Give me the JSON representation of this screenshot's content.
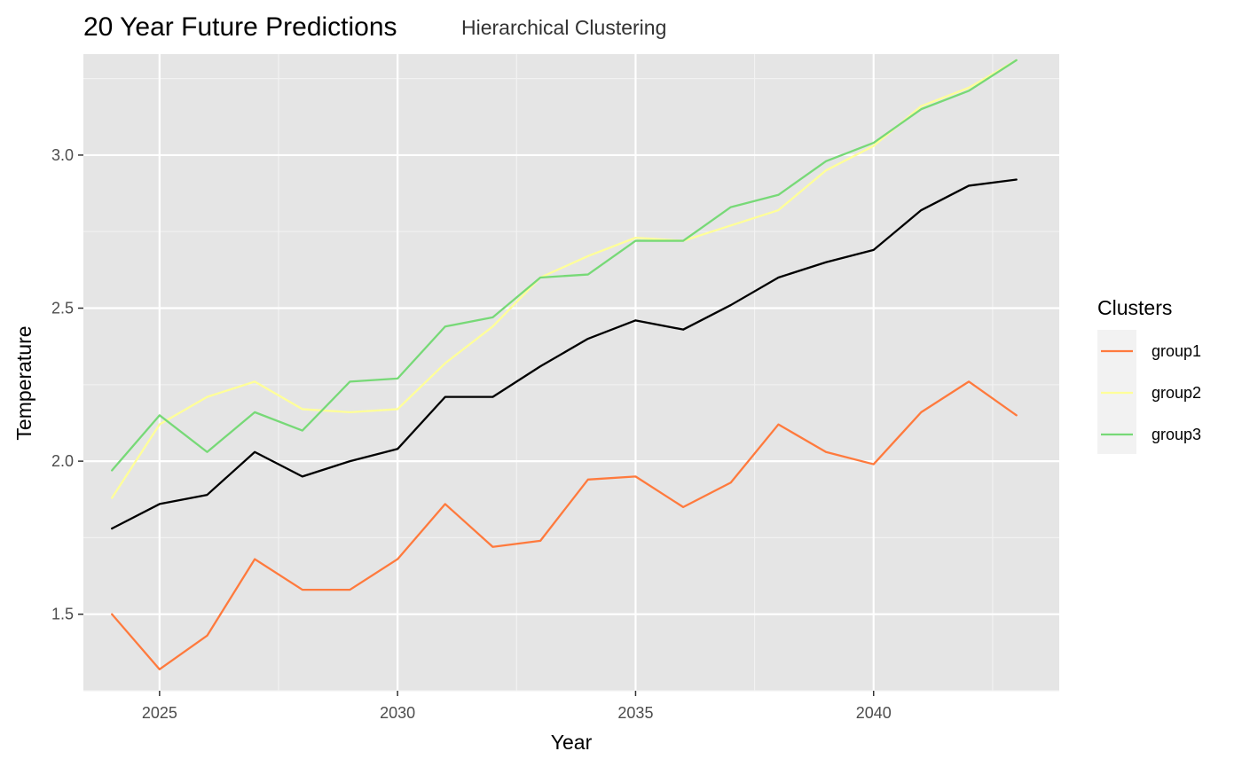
{
  "chart_data": {
    "type": "line",
    "title": "20 Year Future Predictions",
    "subtitle": "Hierarchical Clustering",
    "xlabel": "Year",
    "ylabel": "Temperature",
    "xlim": [
      2023.4,
      2043.9
    ],
    "ylim": [
      1.25,
      3.33
    ],
    "x_ticks": [
      2025,
      2030,
      2035,
      2040
    ],
    "y_ticks": [
      1.5,
      2.0,
      2.5,
      3.0
    ],
    "grid": true,
    "legend": {
      "title": "Clusters",
      "position": "right"
    },
    "x": [
      2024,
      2025,
      2026,
      2027,
      2028,
      2029,
      2030,
      2031,
      2032,
      2033,
      2034,
      2035,
      2036,
      2037,
      2038,
      2039,
      2040,
      2041,
      2042,
      2043
    ],
    "series": [
      {
        "name": "group1",
        "color": "#ff7a3d",
        "in_legend": true,
        "values": [
          1.5,
          1.32,
          1.43,
          1.68,
          1.58,
          1.58,
          1.68,
          1.86,
          1.72,
          1.74,
          1.94,
          1.95,
          1.85,
          1.93,
          2.12,
          2.03,
          1.99,
          2.16,
          2.26,
          2.15
        ]
      },
      {
        "name": "group2",
        "color": "#ffff99",
        "in_legend": true,
        "values": [
          1.88,
          2.12,
          2.21,
          2.26,
          2.17,
          2.16,
          2.17,
          2.32,
          2.44,
          2.6,
          2.67,
          2.73,
          2.72,
          2.77,
          2.82,
          2.95,
          3.03,
          3.16,
          3.22,
          3.31
        ]
      },
      {
        "name": "group3",
        "color": "#77d977",
        "in_legend": true,
        "values": [
          1.97,
          2.15,
          2.03,
          2.16,
          2.1,
          2.26,
          2.27,
          2.44,
          2.47,
          2.6,
          2.61,
          2.72,
          2.72,
          2.83,
          2.87,
          2.98,
          3.04,
          3.15,
          3.21,
          3.31
        ]
      },
      {
        "name": "",
        "color": "#000000",
        "in_legend": false,
        "values": [
          1.78,
          1.86,
          1.89,
          2.03,
          1.95,
          2.0,
          2.04,
          2.21,
          2.21,
          2.31,
          2.4,
          2.46,
          2.43,
          2.51,
          2.6,
          2.65,
          2.69,
          2.82,
          2.9,
          2.92
        ]
      }
    ]
  }
}
